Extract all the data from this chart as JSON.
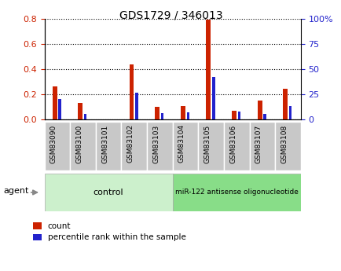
{
  "title": "GDS1729 / 346013",
  "samples": [
    "GSM83090",
    "GSM83100",
    "GSM83101",
    "GSM83102",
    "GSM83103",
    "GSM83104",
    "GSM83105",
    "GSM83106",
    "GSM83107",
    "GSM83108"
  ],
  "count_values": [
    0.26,
    0.13,
    0.0,
    0.435,
    0.1,
    0.105,
    0.795,
    0.065,
    0.148,
    0.245
  ],
  "percentile_values": [
    20.0,
    5.5,
    0.0,
    26.5,
    6.5,
    7.0,
    42.0,
    8.0,
    5.5,
    13.5
  ],
  "control_n": 5,
  "treatment_n": 5,
  "control_label": "control",
  "treatment_label": "miR-122 antisense oligonucleotide",
  "agent_label": "agent",
  "count_color": "#cc2200",
  "percentile_color": "#2222cc",
  "ylim_left": [
    0,
    0.8
  ],
  "ylim_right": [
    0,
    100
  ],
  "yticks_left": [
    0.0,
    0.2,
    0.4,
    0.6,
    0.8
  ],
  "yticks_right": [
    0,
    25,
    50,
    75,
    100
  ],
  "ytick_labels_right": [
    "0",
    "25",
    "50",
    "75",
    "100%"
  ],
  "control_bg": "#ccf0cc",
  "treatment_bg": "#88dd88",
  "xtick_bg": "#c8c8c8",
  "legend_count": "count",
  "legend_percentile": "percentile rank within the sample"
}
